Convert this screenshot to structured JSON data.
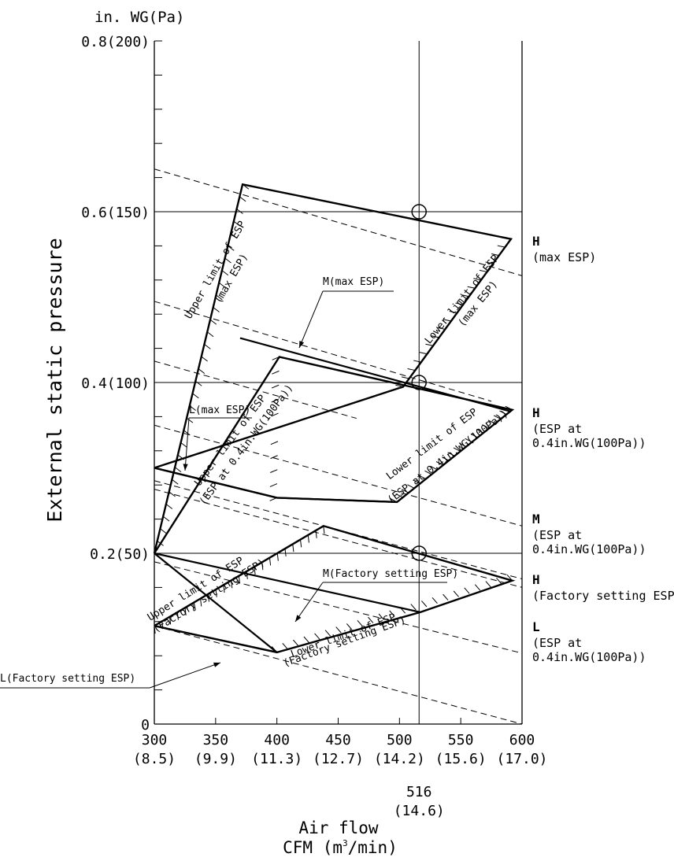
{
  "chart_data": {
    "type": "line",
    "y_unit_label": "in. WG(Pa)",
    "ylabel": "External static pressure",
    "xlabel_line1": "Air flow",
    "xlabel_line2_prefix": "CFM (m",
    "xlabel_line2_sup": "3",
    "xlabel_line2_suffix": "/min)",
    "xlim": [
      300,
      600
    ],
    "ylim": [
      0,
      0.8
    ],
    "x_ticks": [
      {
        "value": 300,
        "label": "300",
        "sub": "(8.5)"
      },
      {
        "value": 350,
        "label": "350",
        "sub": "(9.9)"
      },
      {
        "value": 400,
        "label": "400",
        "sub": "(11.3)"
      },
      {
        "value": 450,
        "label": "450",
        "sub": "(12.7)"
      },
      {
        "value": 500,
        "label": "500",
        "sub": "(14.2)"
      },
      {
        "value": 550,
        "label": "550",
        "sub": "(15.6)"
      },
      {
        "value": 600,
        "label": "600",
        "sub": "(17.0)"
      }
    ],
    "y_ticks": [
      {
        "value": 0,
        "label": "0"
      },
      {
        "value": 0.2,
        "label": "0.2(50)"
      },
      {
        "value": 0.4,
        "label": "0.4(100)"
      },
      {
        "value": 0.6,
        "label": "0.6(150)"
      },
      {
        "value": 0.8,
        "label": "0.8(200)"
      }
    ],
    "reference_x": {
      "value": 516,
      "label": "516",
      "sub": "(14.6)"
    },
    "rated_points": [
      {
        "x": 516,
        "y": 0.6
      },
      {
        "x": 516,
        "y": 0.4
      },
      {
        "x": 516,
        "y": 0.2
      }
    ],
    "fan_curves": [
      {
        "name": "H",
        "setting": "max ESP",
        "x": [
          370,
          591
        ],
        "y": [
          0.452,
          0.366
        ]
      },
      {
        "name": "M",
        "setting": "max ESP",
        "x": [
          300,
          575
        ],
        "y": [
          0.495,
          0.378
        ]
      },
      {
        "name": "L",
        "setting": "max ESP",
        "x": [
          300,
          465
        ],
        "y": [
          0.425,
          0.358
        ]
      },
      {
        "name": "H",
        "setting": "ESP at 0.4in.WG(100Pa)",
        "x": [
          300,
          600
        ],
        "y": [
          0.35,
          0.232
        ]
      },
      {
        "name": "M",
        "setting": "ESP at 0.4in.WG(100Pa)",
        "x": [
          300,
          600
        ],
        "y": [
          0.285,
          0.17
        ]
      },
      {
        "name": "L",
        "setting": "ESP at 0.4in.WG(100Pa)",
        "x": [
          300,
          600
        ],
        "y": [
          0.275,
          0.16
        ]
      },
      {
        "name": "H",
        "setting": "Factory setting ESP",
        "x": [
          300,
          600
        ],
        "y": [
          0.19,
          0.083
        ]
      },
      {
        "name": "M",
        "setting": "Factory setting ESP",
        "x": [
          300,
          600
        ],
        "y": [
          0.65,
          0.525
        ]
      },
      {
        "name": "L",
        "setting": "Factory setting ESP",
        "x": [
          300,
          600
        ],
        "y": [
          0.115,
          0.0
        ]
      }
    ],
    "operating_areas": [
      {
        "name": "max ESP",
        "corners": [
          [
            300,
            0.2
          ],
          [
            372,
            0.632
          ],
          [
            591,
            0.568
          ],
          [
            591,
            0.568
          ],
          [
            536,
            0.429
          ],
          [
            503,
            0.395
          ],
          [
            400,
            0.265
          ]
        ],
        "outline": [
          [
            300,
            0.2
          ],
          [
            372,
            0.632
          ],
          [
            591,
            0.568
          ],
          [
            503,
            0.395
          ],
          [
            300,
            0.3
          ]
        ]
      },
      {
        "name": "ESP at 0.4in.WG(100Pa)",
        "outline": [
          [
            300,
            0.2
          ],
          [
            402,
            0.43
          ],
          [
            592,
            0.368
          ],
          [
            498,
            0.26
          ],
          [
            400,
            0.265
          ],
          [
            300,
            0.3
          ]
        ]
      },
      {
        "name": "Factory setting ESP",
        "outline": [
          [
            300,
            0.115
          ],
          [
            438,
            0.232
          ],
          [
            592,
            0.168
          ],
          [
            517,
            0.131
          ],
          [
            400,
            0.084
          ],
          [
            300,
            0.115
          ]
        ]
      }
    ],
    "annotations": [
      {
        "text": "Upper limit of ESP",
        "x": 352,
        "y": 0.53,
        "angle": -60
      },
      {
        "text": "(max ESP)",
        "x": 365,
        "y": 0.52,
        "angle": -60
      },
      {
        "text": "Lower limit of ESP",
        "x": 553,
        "y": 0.495,
        "angle": -51
      },
      {
        "text": "(max ESP)",
        "x": 566,
        "y": 0.49,
        "angle": -51
      },
      {
        "text": "Upper limit of ESP",
        "x": 364,
        "y": 0.33,
        "angle": -53
      },
      {
        "text": "(ESP at 0.4in.WG(100Pa))",
        "x": 377,
        "y": 0.325,
        "angle": -53
      },
      {
        "text": "Lower limit of ESP",
        "x": 528,
        "y": 0.325,
        "angle": -37
      },
      {
        "text": "(ESP at 0.4in.WG(100Pa))",
        "x": 541,
        "y": 0.31,
        "angle": -37
      },
      {
        "text": "Upper limit of ESP",
        "x": 335,
        "y": 0.155,
        "angle": -32
      },
      {
        "text": "(Factory setting ESP)",
        "x": 346,
        "y": 0.147,
        "angle": -32
      },
      {
        "text": "Lower limit of ESP",
        "x": 455,
        "y": 0.1,
        "angle": -20
      },
      {
        "text": "(Factory setting ESP)",
        "x": 456,
        "y": 0.093,
        "angle": -20
      }
    ],
    "callouts": [
      {
        "text": "M(max ESP)",
        "x": 476,
        "y": 0.498
      },
      {
        "text": "L(max ESP)",
        "x": 340,
        "y": 0.37
      },
      {
        "text": "M(Factory setting ESP)",
        "x": 496,
        "y": 0.17
      },
      {
        "text": "L(Factory setting ESP)",
        "x": 224,
        "y": 0.05
      }
    ],
    "right_labels": [
      {
        "head": "H",
        "lines": [
          "(max ESP)"
        ]
      },
      {
        "head": "H",
        "lines": [
          "(ESP at",
          " 0.4in.WG(100Pa))"
        ]
      },
      {
        "head": "M",
        "lines": [
          "(ESP at",
          " 0.4in.WG(100Pa))"
        ]
      },
      {
        "head": "H",
        "lines": [
          "(Factory setting ESP)"
        ]
      },
      {
        "head": "L",
        "lines": [
          "(ESP at",
          " 0.4in.WG(100Pa))"
        ]
      }
    ]
  }
}
